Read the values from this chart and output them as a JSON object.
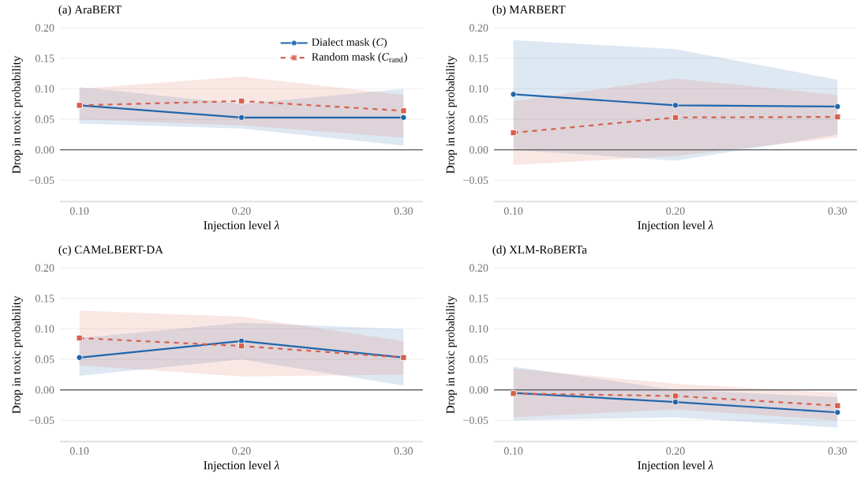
{
  "chart_data": [
    {
      "type": "line",
      "title": "(a) AraBERT",
      "xlabel": "Injection level *λ*",
      "ylabel": "Drop in toxic probability",
      "x": [
        0.1,
        0.2,
        0.3
      ],
      "xlim": [
        0.088,
        0.312
      ],
      "ylim": [
        -0.085,
        0.2
      ],
      "xticks": [
        {
          "value": 0.1,
          "label": "0.10"
        },
        {
          "value": 0.2,
          "label": "0.20"
        },
        {
          "value": 0.3,
          "label": "0.30"
        }
      ],
      "yticks": [
        {
          "value": -0.05,
          "label": "−0.05"
        },
        {
          "value": 0,
          "label": "0.00"
        },
        {
          "value": 0.05,
          "label": "0.05"
        },
        {
          "value": 0.1,
          "label": "0.10"
        },
        {
          "value": 0.15,
          "label": "0.15"
        },
        {
          "value": 0.2,
          "label": "0.20"
        }
      ],
      "grid": "y",
      "legend": "top right",
      "ref_lines": [
        {
          "axis": "y",
          "value": 0,
          "color": "#666666"
        }
      ],
      "series": [
        {
          "name": "Dialect mask (*C*)",
          "color": "#2166ac",
          "marker": "circle",
          "line_style": "solid",
          "values": [
            0.073,
            0.053,
            0.053
          ],
          "lower": [
            0.043,
            0.035,
            0.007
          ],
          "upper": [
            0.103,
            0.075,
            0.1
          ]
        },
        {
          "name": "Random mask (*C*$_{rand}$)",
          "color": "#d6604d",
          "marker": "square",
          "line_style": "dashed",
          "values": [
            0.073,
            0.08,
            0.064
          ],
          "lower": [
            0.05,
            0.04,
            0.02
          ],
          "upper": [
            0.1,
            0.12,
            0.09
          ]
        }
      ]
    },
    {
      "type": "line",
      "title": "(b) MARBERT",
      "xlabel": "Injection level *λ*",
      "ylabel": "Drop in toxic probability",
      "x": [
        0.1,
        0.2,
        0.3
      ],
      "xlim": [
        0.088,
        0.312
      ],
      "ylim": [
        -0.085,
        0.2
      ],
      "xticks": [
        {
          "value": 0.1,
          "label": "0.10"
        },
        {
          "value": 0.2,
          "label": "0.20"
        },
        {
          "value": 0.3,
          "label": "0.30"
        }
      ],
      "yticks": [
        {
          "value": -0.05,
          "label": "−0.05"
        },
        {
          "value": 0,
          "label": "0.00"
        },
        {
          "value": 0.05,
          "label": "0.05"
        },
        {
          "value": 0.1,
          "label": "0.10"
        },
        {
          "value": 0.15,
          "label": "0.15"
        },
        {
          "value": 0.2,
          "label": "0.20"
        }
      ],
      "grid": "y",
      "ref_lines": [
        {
          "axis": "y",
          "value": 0,
          "color": "#666666"
        }
      ],
      "series": [
        {
          "color": "#2166ac",
          "marker": "circle",
          "line_style": "solid",
          "values": [
            0.091,
            0.073,
            0.071
          ],
          "lower": [
            0.0,
            -0.018,
            0.025
          ],
          "upper": [
            0.18,
            0.165,
            0.115
          ]
        },
        {
          "color": "#d6604d",
          "marker": "square",
          "line_style": "dashed",
          "values": [
            0.028,
            0.053,
            0.054
          ],
          "lower": [
            -0.025,
            -0.01,
            0.02
          ],
          "upper": [
            0.08,
            0.117,
            0.09
          ]
        }
      ]
    },
    {
      "type": "line",
      "title": "(c) CAMeLBERT-DA",
      "xlabel": "Injection level *λ*",
      "ylabel": "Drop in toxic probability",
      "x": [
        0.1,
        0.2,
        0.3
      ],
      "xlim": [
        0.088,
        0.312
      ],
      "ylim": [
        -0.085,
        0.2
      ],
      "xticks": [
        {
          "value": 0.1,
          "label": "0.10"
        },
        {
          "value": 0.2,
          "label": "0.20"
        },
        {
          "value": 0.3,
          "label": "0.30"
        }
      ],
      "yticks": [
        {
          "value": -0.05,
          "label": "−0.05"
        },
        {
          "value": 0,
          "label": "0.00"
        },
        {
          "value": 0.05,
          "label": "0.05"
        },
        {
          "value": 0.1,
          "label": "0.10"
        },
        {
          "value": 0.15,
          "label": "0.15"
        },
        {
          "value": 0.2,
          "label": "0.20"
        }
      ],
      "grid": "y",
      "ref_lines": [
        {
          "axis": "y",
          "value": 0,
          "color": "#666666"
        }
      ],
      "series": [
        {
          "color": "#2166ac",
          "marker": "circle",
          "line_style": "solid",
          "values": [
            0.053,
            0.08,
            0.053
          ],
          "lower": [
            0.023,
            0.05,
            0.007
          ],
          "upper": [
            0.085,
            0.11,
            0.1
          ]
        },
        {
          "color": "#d6604d",
          "marker": "square",
          "line_style": "dashed",
          "values": [
            0.085,
            0.072,
            0.053
          ],
          "lower": [
            0.04,
            0.022,
            0.025
          ],
          "upper": [
            0.13,
            0.12,
            0.08
          ]
        }
      ]
    },
    {
      "type": "line",
      "title": "(d) XLM-RoBERTa",
      "xlabel": "Injection level *λ*",
      "ylabel": "Drop in toxic probability",
      "x": [
        0.1,
        0.2,
        0.3
      ],
      "xlim": [
        0.088,
        0.312
      ],
      "ylim": [
        -0.085,
        0.2
      ],
      "xticks": [
        {
          "value": 0.1,
          "label": "0.10"
        },
        {
          "value": 0.2,
          "label": "0.20"
        },
        {
          "value": 0.3,
          "label": "0.30"
        }
      ],
      "yticks": [
        {
          "value": -0.05,
          "label": "−0.05"
        },
        {
          "value": 0,
          "label": "0.00"
        },
        {
          "value": 0.05,
          "label": "0.05"
        },
        {
          "value": 0.1,
          "label": "0.10"
        },
        {
          "value": 0.15,
          "label": "0.15"
        },
        {
          "value": 0.2,
          "label": "0.20"
        }
      ],
      "grid": "y",
      "ref_lines": [
        {
          "axis": "y",
          "value": 0,
          "color": "#666666"
        }
      ],
      "series": [
        {
          "color": "#2166ac",
          "marker": "circle",
          "line_style": "solid",
          "values": [
            -0.005,
            -0.02,
            -0.037
          ],
          "lower": [
            -0.05,
            -0.045,
            -0.062
          ],
          "upper": [
            0.038,
            0.0,
            -0.012
          ]
        },
        {
          "color": "#d6604d",
          "marker": "square",
          "line_style": "dashed",
          "values": [
            -0.006,
            -0.01,
            -0.026
          ],
          "lower": [
            -0.045,
            -0.032,
            -0.05
          ],
          "upper": [
            0.035,
            0.01,
            -0.005
          ]
        }
      ]
    }
  ]
}
